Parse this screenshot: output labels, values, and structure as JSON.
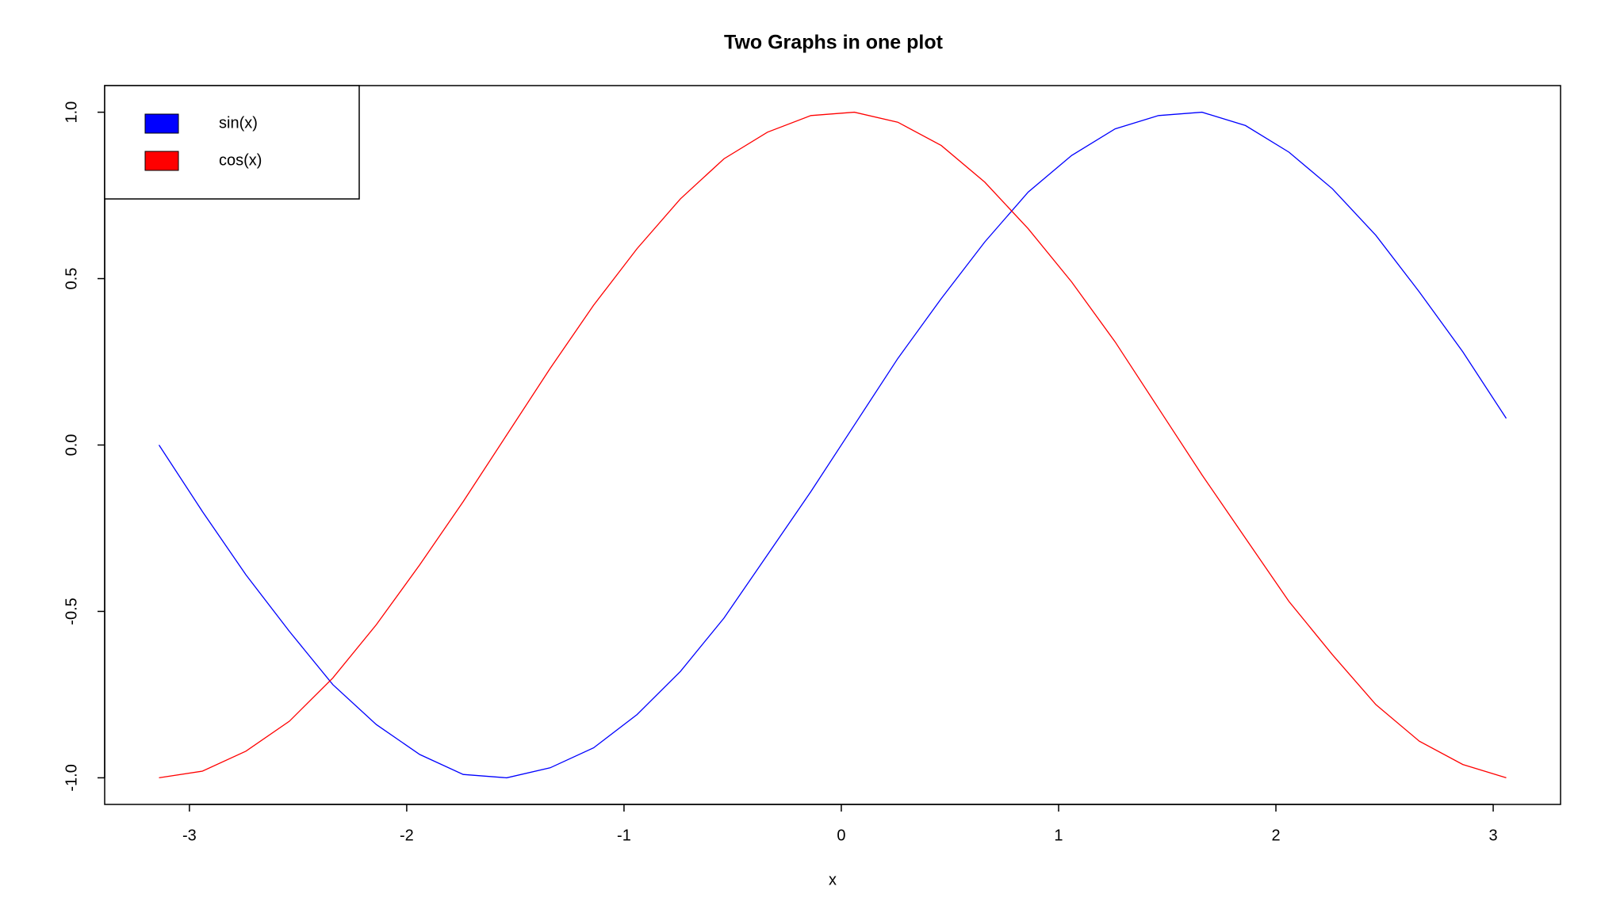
{
  "chart_data": {
    "type": "line",
    "title": "Two Graphs in one plot",
    "x_label": "x",
    "x": [
      -3.14,
      -2.94,
      -2.74,
      -2.54,
      -2.34,
      -2.14,
      -1.94,
      -1.74,
      -1.54,
      -1.34,
      -1.14,
      -0.94,
      -0.74,
      -0.54,
      -0.34,
      -0.14,
      0.06,
      0.26,
      0.46,
      0.66,
      0.86,
      1.06,
      1.26,
      1.46,
      1.66,
      1.86,
      2.06,
      2.26,
      2.46,
      2.66,
      2.86,
      3.06
    ],
    "series": [
      {
        "name": "sin(x)",
        "color": "#0000ff",
        "values": [
          0,
          -0.2,
          -0.39,
          -0.56,
          -0.72,
          -0.84,
          -0.93,
          -0.99,
          -1.0,
          -0.97,
          -0.91,
          -0.81,
          -0.68,
          -0.52,
          -0.33,
          -0.14,
          0.06,
          0.26,
          0.44,
          0.61,
          0.76,
          0.87,
          0.95,
          0.99,
          1.0,
          0.96,
          0.88,
          0.77,
          0.63,
          0.46,
          0.28,
          0.08
        ]
      },
      {
        "name": "cos(x)",
        "color": "#ff0000",
        "values": [
          -1,
          -0.98,
          -0.92,
          -0.83,
          -0.7,
          -0.54,
          -0.36,
          -0.17,
          0.03,
          0.23,
          0.42,
          0.59,
          0.74,
          0.86,
          0.94,
          0.99,
          1.0,
          0.97,
          0.9,
          0.79,
          0.65,
          0.49,
          0.31,
          0.11,
          -0.09,
          -0.28,
          -0.47,
          -0.63,
          -0.78,
          -0.89,
          -0.96,
          -1.0
        ]
      }
    ],
    "xlim": [
      -3.39,
      3.31
    ],
    "ylim": [
      -1.08,
      1.08
    ],
    "xticks": [
      -3,
      -2,
      -1,
      0,
      1,
      2,
      3
    ],
    "yticks": [
      {
        "value": -1,
        "label": "-1.0"
      },
      {
        "value": -0.5,
        "label": "-0.5"
      },
      {
        "value": 0,
        "label": "0.0"
      },
      {
        "value": 0.5,
        "label": "0.5"
      },
      {
        "value": 1,
        "label": "1.0"
      }
    ],
    "legend": "top-left"
  }
}
